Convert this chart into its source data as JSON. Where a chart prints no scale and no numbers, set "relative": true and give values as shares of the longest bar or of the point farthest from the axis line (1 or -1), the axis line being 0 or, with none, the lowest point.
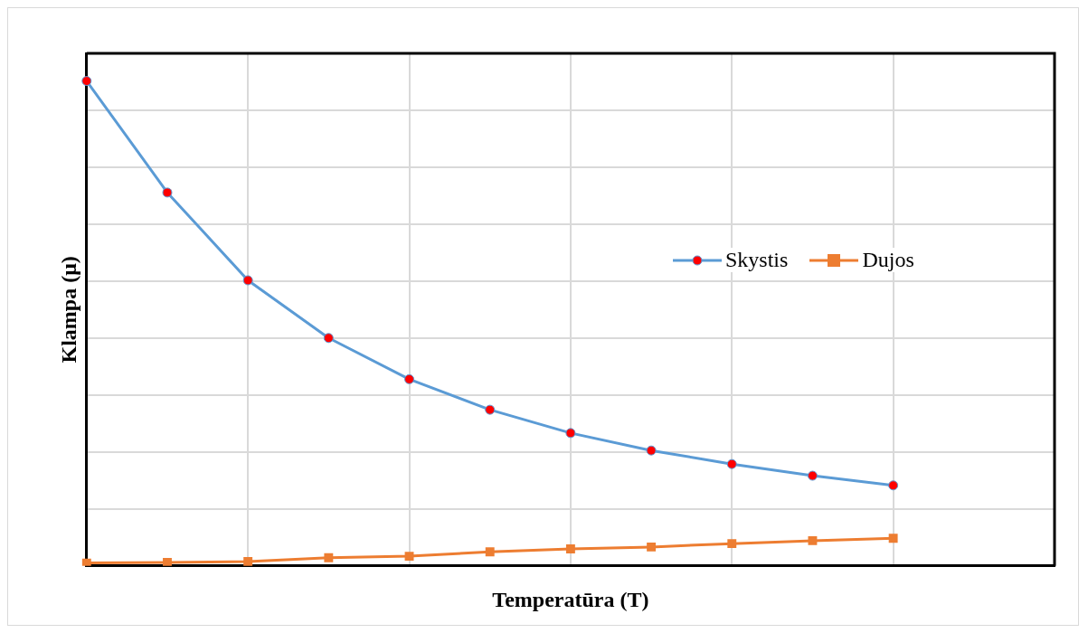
{
  "chart_data": {
    "type": "line",
    "xlabel": "Temperatūra (T)",
    "ylabel": "Klampa (μ)",
    "relative": true,
    "categories": [
      null,
      null,
      null,
      null,
      null,
      null,
      null,
      null,
      null,
      null,
      null,
      null,
      null
    ],
    "grid": true,
    "legend": "right",
    "line_style": "solid",
    "series": [
      {
        "name": "Skystis",
        "color": "#5b9bd5",
        "marker": "circle",
        "values": [
          1,
          0.77,
          0.589,
          0.47,
          0.385,
          0.322,
          0.274,
          0.238,
          0.21,
          0.186,
          0.166,
          null,
          null
        ]
      },
      {
        "name": "Dujos",
        "color": "#ed7d31",
        "marker": "square",
        "values": [
          0.006,
          0.007,
          0.009,
          0.017,
          0.02,
          0.029,
          0.035,
          0.039,
          0.046,
          0.052,
          0.057,
          null,
          null
        ]
      }
    ]
  }
}
